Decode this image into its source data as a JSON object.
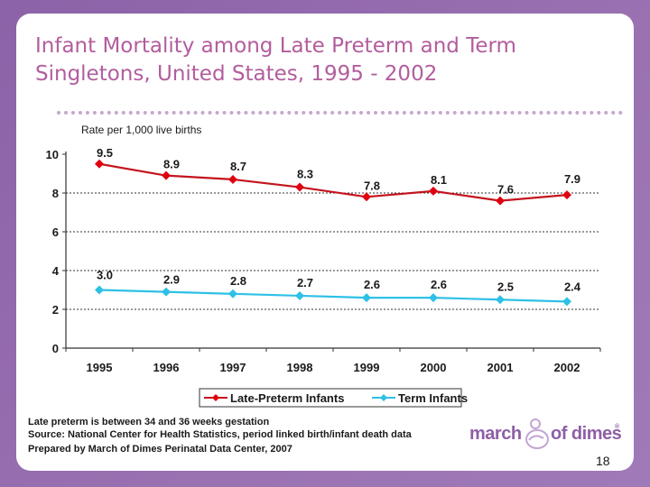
{
  "slide": {
    "title": "Infant Mortality among Late Preterm and Term Singletons, United States, 1995 - 2002",
    "title_line1": "Infant Mortality among Late Preterm and Term",
    "title_line2": "Singletons, United States, 1995 - 2002",
    "page_number": "18",
    "footnotes": [
      "Late preterm is between 34 and 36 weeks gestation",
      "Source: National Center for Health Statistics, period linked birth/infant death data",
      "Prepared by March of Dimes Perinatal Data Center, 2007"
    ],
    "logo": {
      "word1": "march",
      "word2": "of dimes",
      "reg": "®"
    },
    "colors": {
      "background": "#9469ad",
      "title": "#b25d9e",
      "late_preterm": "#e0000f",
      "term": "#2ec0e6"
    }
  },
  "chart_data": {
    "type": "line",
    "title": "",
    "xlabel": "",
    "ylabel": "Rate per 1,000 live births",
    "categories": [
      "1995",
      "1996",
      "1997",
      "1998",
      "1999",
      "2000",
      "2001",
      "2002"
    ],
    "ylim": [
      0,
      10
    ],
    "yticks": [
      0,
      2,
      4,
      6,
      8,
      10
    ],
    "ytick_labels": [
      "0",
      "2",
      "4",
      "6",
      "8",
      "10"
    ],
    "grid": "horizontal dotted",
    "legend_position": "bottom",
    "series": [
      {
        "name": "Late-Preterm Infants",
        "color": "#e0000f",
        "values": [
          9.5,
          8.9,
          8.7,
          8.3,
          7.8,
          8.1,
          7.6,
          7.9
        ],
        "labels": [
          "9.5",
          "8.9",
          "8.7",
          "8.3",
          "7.8",
          "8.1",
          "7.6",
          "7.9"
        ]
      },
      {
        "name": "Term Infants",
        "color": "#2ec0e6",
        "values": [
          3.0,
          2.9,
          2.8,
          2.7,
          2.6,
          2.6,
          2.5,
          2.4
        ],
        "labels": [
          "3.0",
          "2.9",
          "2.8",
          "2.7",
          "2.6",
          "2.6",
          "2.5",
          "2.4"
        ]
      }
    ]
  }
}
